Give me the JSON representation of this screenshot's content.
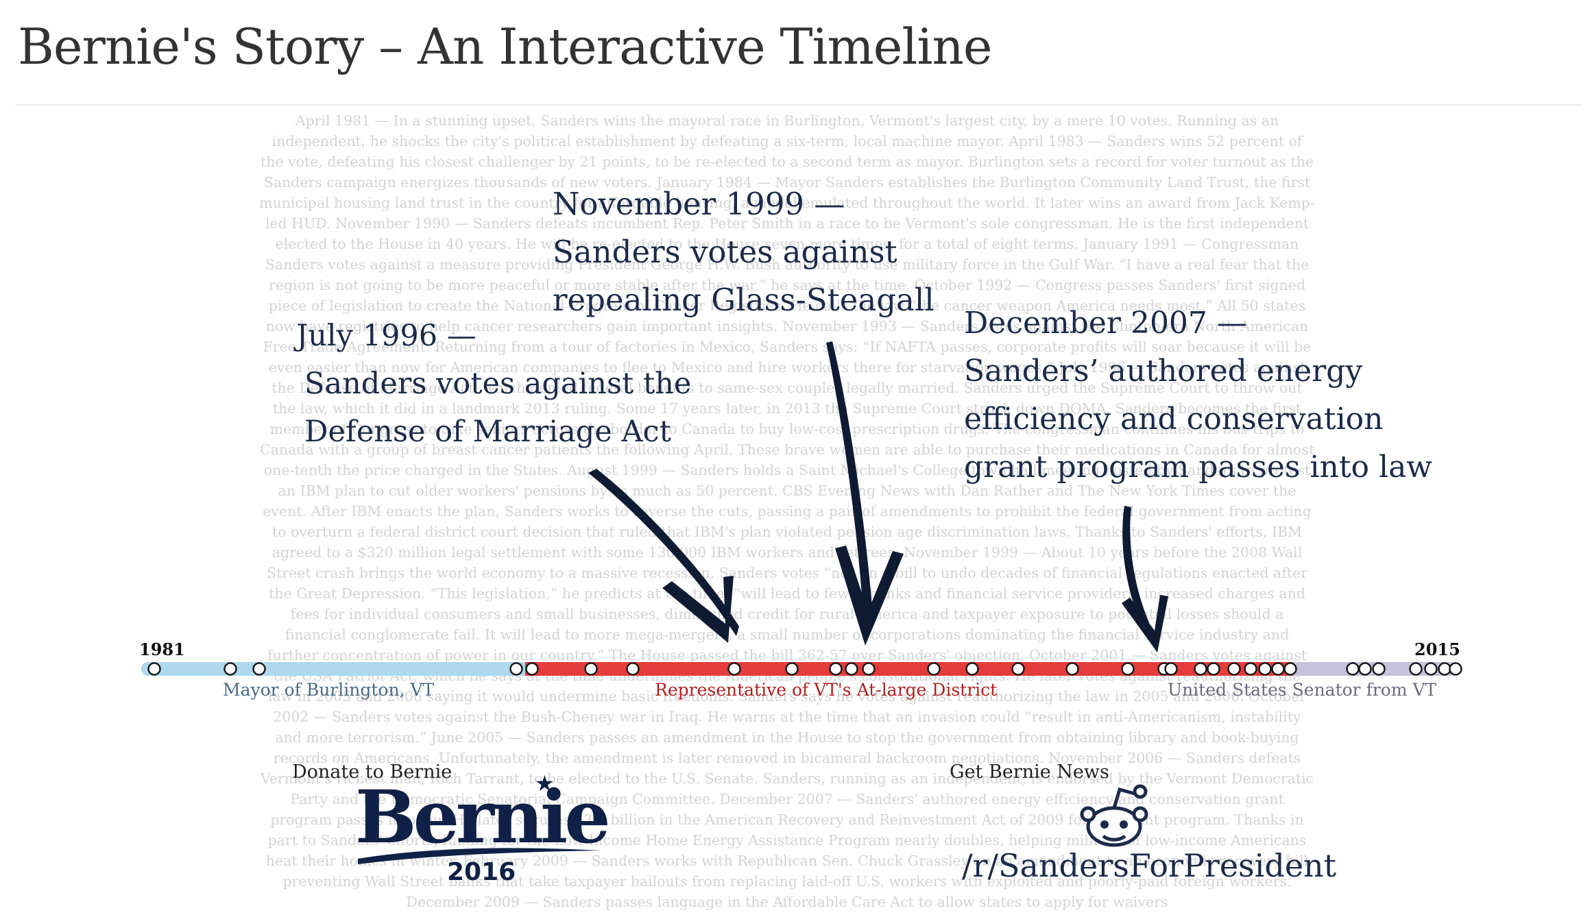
{
  "page": {
    "title": "Bernie's Story – An Interactive Timeline"
  },
  "background_text": "April 1981 — In a stunning upset, Sanders wins the mayoral race in Burlington, Vermont's largest city, by a mere 10 votes. Running as an independent, he shocks the city's political establishment by defeating a six-term, local machine mayor. April 1983 — Sanders wins 52 percent of the vote, defeating his closest challenger by 21 points, to be re-elected to a second term as mayor. Burlington sets a record for voter turnout as the Sanders campaign energizes thousands of new voters. January 1984 — Mayor Sanders establishes the Burlington Community Land Trust, the first municipal housing land trust in the country for affordable housing, a model emulated throughout the world. It later wins an award from Jack Kemp-led HUD. November 1990 — Sanders defeats incumbent Rep. Peter Smith in a race to be Vermont's sole congressman. He is the first independent elected to the House in 40 years. He will be re-elected to the House seven more times, for a total of eight terms. January 1991 — Congressman Sanders votes against a measure providing President George H.W. Bush authority to use military force in the Gulf War. “I have a real fear that the region is not going to be more peaceful or more stable after the war,” he says at the time. October 1992 — Congress passes Sanders' first signed piece of legislation to create the National Program of Cancer Registries. He calls the law “the cancer weapon America needs most.” All 50 states now have registries to help cancer researchers gain important insights. November 1993 — Sanders votes against the Clinton-era North American Free Trade Agreement. Returning from a tour of factories in Mexico, Sanders says: “If NAFTA passes, corporate profits will soar because it will be even easier than now for American companies to flee to Mexico and hire workers there for starvation wages.” July 1996 — Sanders votes against the Defense of Marriage Act, which denied federal benefits to same-sex couples legally married. Sanders urged the Supreme Court to throw out the law, which it did in a landmark 2013 ruling. Some 17 years later, in 2013 the Supreme Court struck down DOMA. Sanders becomes the first member of Congress to take seniors across the border to Canada to buy low-cost prescription drugs. The congressman continues his bus trips to Canada with a group of breast cancer patients the following April. These brave women are able to purchase their medications in Canada for almost one-tenth the price charged in the States. August 1999 — Sanders holds a Saint Michael's College town hall meeting hosted by Sanders to protest an IBM plan to cut older workers' pensions by as much as 50 percent. CBS Evening News with Dan Rather and The New York Times cover the event. After IBM enacts the plan, Sanders works to reverse the cuts, passing a pair of amendments to prohibit the federal government from acting to overturn a federal district court decision that ruled that IBM's plan violated pension age discrimination laws. Thanks to Sanders' efforts, IBM agreed to a $320 million legal settlement with some 130,000 IBM workers and retirees. November 1999 — About 10 years before the 2008 Wall Street crash brings the world economy to a massive recession, Sanders votes “no” on a bill to undo decades of financial regulations enacted after the Great Depression. “This legislation,” he predicts at the time, “will lead to fewer banks and financial service providers, increased charges and fees for individual consumers and small businesses, diminished credit for rural America and taxpayer exposure to potential losses should a financial conglomerate fail. It will lead to more mega-mergers, a small number of corporations dominating the financial service industry and further concentration of power in our country.” The House passed the bill 362-57 over Sanders' objection. October 2001 — Sanders votes against the USA Patriot Act, which he says at the time undermines the American people's constitutional rights. He later votes against reauthorizing the law in 2005 and 2006 saying it would undermine basic freedoms. Sanders says he votes against reauthorizing the law in 2005 and 2006. October 2002 — Sanders votes against the Bush-Cheney war in Iraq. He warns at the time that an invasion could “result in anti-Americanism, instability and more terrorism.” June 2005 — Sanders passes an amendment in the House to stop the government from obtaining library and book-buying records on Americans. Unfortunately, the amendment is later removed in bicameral backroom negotiations. November 2006 — Sanders defeats Vermont's richest man, Rich Tarrant, to be elected to the U.S. Senate. Sanders, running as an independent, is endorsed by the Vermont Democratic Party and the Democratic Senatorial Campaign Committee. December 2007 — Sanders' authored energy efficiency and conservation grant program passes into law. He later secures $3.2 billion in the American Recovery and Reinvestment Act of 2009 for the grant program. Thanks in part to Sanders' efforts, funding for the Low Income Home Energy Assistance Program nearly doubles, helping millions of low-income Americans heat their homes in winter. February 2009 — Sanders works with Republican Sen. Chuck Grassley on an amendment to an economic recovery bill preventing Wall Street banks that take taxpayer bailouts from replacing laid-off U.S. workers with exploited and poorly-paid foreign workers. December 2009 — Sanders passes language in the Affordable Care Act to allow states to apply for waivers",
  "annotations": {
    "nov_1999": {
      "line1": "November 1999 —",
      "line2": "Sanders votes against",
      "line3": "repealing Glass-Steagall"
    },
    "jul_1996": {
      "line1": "July 1996 —",
      "line2": "Sanders votes against the",
      "line3": "Defense of Marriage Act"
    },
    "dec_2007": {
      "line1": "December 2007 —",
      "line2": "Sanders’ authored energy",
      "line3": "efficiency and conservation",
      "line4": "grant program passes into law"
    }
  },
  "timeline": {
    "start_year": "1981",
    "end_year": "2015",
    "range": [
      1981,
      2015
    ],
    "eras": [
      {
        "label": "Mayor of Burlington, VT",
        "from": 1981,
        "to": 1991,
        "color": "#add8ee"
      },
      {
        "label": "Representative of VT's At-large District",
        "from": 1991,
        "to": 2007,
        "color": "#e63b3b"
      },
      {
        "label": "United States Senator from VT",
        "from": 2007,
        "to": 2015,
        "color": "#c6c2dd"
      }
    ],
    "event_marker_count": 33
  },
  "links": {
    "donate_caption": "Donate to Bernie",
    "bernie_logo_text": "Bernie",
    "bernie_logo_year": "2016",
    "news_caption": "Get Bernie News",
    "subreddit": "/r/SandersForPresident"
  },
  "icons": {
    "reddit": "reddit-alien-icon",
    "star": "star-icon",
    "arrow": "hand-drawn-arrow-icon"
  },
  "colors": {
    "title": "#333333",
    "annotation": "#1b2a49",
    "background_text": "#d3d3d3",
    "logo_navy": "#0f2146",
    "mayor_bar": "#add8ee",
    "house_bar": "#e63b3b",
    "senate_bar": "#c6c2dd",
    "mayor_label": "#4a6b85",
    "house_label": "#b21e1e",
    "senate_label": "#6b6a80"
  }
}
